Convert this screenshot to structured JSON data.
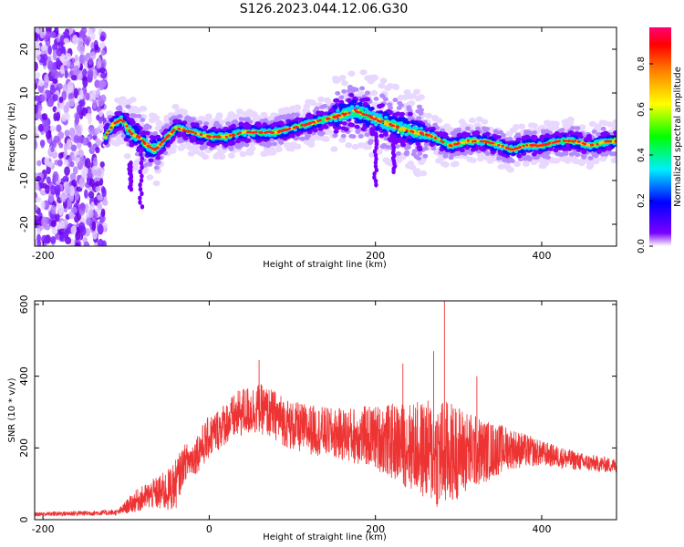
{
  "title": "S126.2023.044.12.06.G30",
  "chart_data": [
    {
      "type": "heatmap",
      "xlabel": "Height of straight line (km)",
      "ylabel": "Frequency (Hz)",
      "xlim": [
        -210,
        490
      ],
      "ylim": [
        -25,
        25
      ],
      "xticks": [
        -200,
        0,
        200,
        400
      ],
      "yticks": [
        -20,
        -10,
        0,
        10,
        20
      ],
      "colorbar": {
        "label": "Normalized spectral amplitude",
        "range": [
          0.0,
          0.96
        ],
        "ticks": [
          0.0,
          0.2,
          0.4,
          0.6,
          0.8
        ]
      },
      "ridge": {
        "x": [
          -125,
          -115,
          -105,
          -95,
          -85,
          -75,
          -65,
          -50,
          -40,
          -20,
          0,
          20,
          40,
          60,
          80,
          100,
          120,
          140,
          160,
          175,
          190,
          200,
          215,
          230,
          250,
          270,
          290,
          310,
          330,
          350,
          365,
          380,
          400,
          420,
          440,
          460,
          480,
          490
        ],
        "y": [
          0,
          3,
          4,
          1,
          0,
          -2,
          -3,
          0,
          2,
          1,
          0,
          0,
          1,
          1,
          1,
          2,
          3,
          4,
          5,
          6,
          5,
          4,
          3,
          2,
          1,
          0,
          -2,
          -1,
          -1,
          -2,
          -3,
          -2,
          -2,
          -1,
          -1,
          -2,
          -1,
          -1
        ]
      },
      "noise_region_x": [
        -210,
        -125
      ]
    },
    {
      "type": "line",
      "xlabel": "Height of straight line (km)",
      "ylabel": "SNR (10 * v/v)",
      "xlim": [
        -210,
        490
      ],
      "ylim": [
        0,
        610
      ],
      "xticks": [
        -200,
        0,
        200,
        400
      ],
      "yticks": [
        0,
        200,
        400,
        600
      ],
      "color": "#ee3333",
      "envelope": {
        "x": [
          -210,
          -110,
          -90,
          -70,
          -50,
          -40,
          -30,
          -20,
          -10,
          0,
          20,
          40,
          60,
          80,
          100,
          150,
          200,
          250,
          280,
          300,
          330,
          360,
          400,
          450,
          490
        ],
        "mean": [
          15,
          20,
          50,
          70,
          80,
          100,
          160,
          170,
          200,
          230,
          270,
          300,
          310,
          290,
          260,
          240,
          230,
          200,
          180,
          190,
          190,
          200,
          185,
          160,
          150
        ],
        "amplitude": [
          6,
          8,
          30,
          40,
          60,
          70,
          50,
          50,
          60,
          60,
          60,
          70,
          70,
          70,
          70,
          70,
          90,
          130,
          160,
          130,
          90,
          60,
          35,
          25,
          20
        ]
      },
      "spikes": [
        {
          "x": 283,
          "y": 610
        },
        {
          "x": 233,
          "y": 435
        },
        {
          "x": 270,
          "y": 470
        },
        {
          "x": 60,
          "y": 445
        },
        {
          "x": 322,
          "y": 400
        }
      ]
    }
  ]
}
